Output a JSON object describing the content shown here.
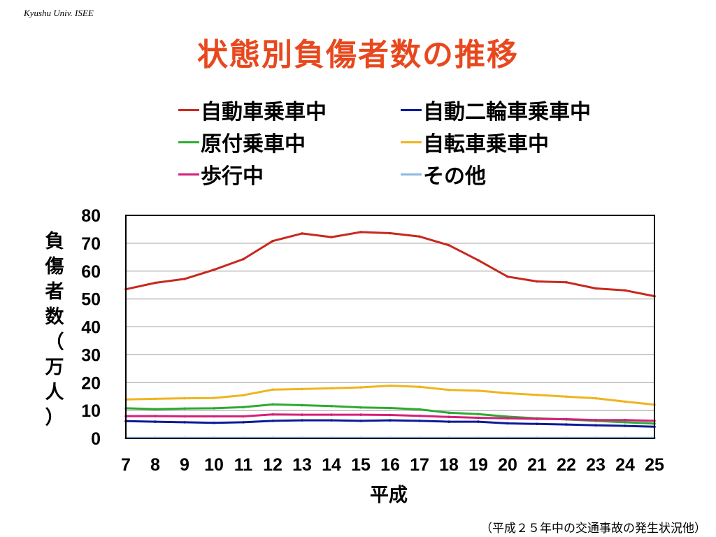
{
  "header": {
    "corner_text": "Kyushu Univ. ISEE"
  },
  "chart_data": {
    "type": "line",
    "title": "状態別負傷者数の推移",
    "xlabel": "平成",
    "ylabel": "負傷者数（万人）",
    "ylim": [
      0,
      80
    ],
    "yticks": [
      0,
      10,
      20,
      30,
      40,
      50,
      60,
      70,
      80
    ],
    "x": [
      7,
      8,
      9,
      10,
      11,
      12,
      13,
      14,
      15,
      16,
      17,
      18,
      19,
      20,
      21,
      22,
      23,
      24,
      25
    ],
    "grid": true,
    "legend_position": "top",
    "series": [
      {
        "name": "自動車乗車中",
        "color": "#c8281e",
        "values": [
          53.5,
          55.8,
          57.2,
          60.5,
          64.3,
          70.8,
          73.5,
          72.2,
          74.0,
          73.6,
          72.4,
          69.3,
          63.9,
          58.0,
          56.3,
          56.0,
          53.8,
          53.1,
          51.0
        ]
      },
      {
        "name": "自動二輪車乗車中",
        "color": "#0a1a9a",
        "values": [
          6.2,
          6.0,
          5.8,
          5.6,
          5.8,
          6.3,
          6.5,
          6.5,
          6.3,
          6.5,
          6.3,
          6.0,
          6.0,
          5.4,
          5.2,
          5.0,
          4.7,
          4.5,
          4.2
        ]
      },
      {
        "name": "原付乗車中",
        "color": "#2eaa32",
        "values": [
          10.8,
          10.5,
          10.7,
          10.8,
          11.2,
          12.2,
          11.9,
          11.6,
          11.1,
          10.9,
          10.4,
          9.2,
          8.7,
          7.8,
          7.2,
          6.8,
          6.3,
          5.8,
          5.3
        ]
      },
      {
        "name": "自転車乗車中",
        "color": "#f0b41e",
        "values": [
          14.0,
          14.2,
          14.4,
          14.5,
          15.5,
          17.5,
          17.7,
          18.0,
          18.3,
          18.9,
          18.5,
          17.4,
          17.1,
          16.2,
          15.6,
          15.0,
          14.4,
          13.2,
          12.1
        ]
      },
      {
        "name": "歩行中",
        "color": "#d4207a",
        "values": [
          8.0,
          8.0,
          7.9,
          7.9,
          7.9,
          8.6,
          8.5,
          8.5,
          8.5,
          8.4,
          8.1,
          7.7,
          7.4,
          7.2,
          7.0,
          6.9,
          6.6,
          6.6,
          6.3
        ]
      },
      {
        "name": "その他",
        "color": "#8fb8e6",
        "values": [
          0.2,
          0.2,
          0.2,
          0.2,
          0.2,
          0.2,
          0.2,
          0.2,
          0.2,
          0.2,
          0.2,
          0.2,
          0.2,
          0.2,
          0.2,
          0.2,
          0.2,
          0.2,
          0.2
        ]
      }
    ]
  },
  "footer": {
    "source": "（平成２５年中の交通事故の発生状況他）"
  }
}
